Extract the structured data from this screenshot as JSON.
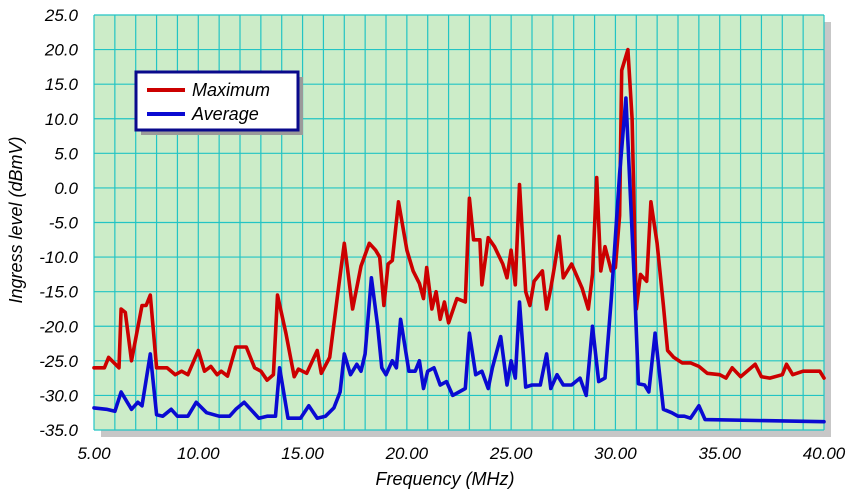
{
  "chart_data": {
    "type": "line",
    "title": "",
    "xlabel": "Frequency (MHz)",
    "ylabel": "Ingress level (dBmV)",
    "xlim": [
      5.0,
      40.0
    ],
    "ylim": [
      -35.0,
      25.0
    ],
    "x_ticks": [
      "5.00",
      "10.00",
      "15.00",
      "20.00",
      "25.00",
      "30.00",
      "35.00",
      "40.00"
    ],
    "y_ticks": [
      "25.0",
      "20.0",
      "15.0",
      "10.0",
      "5.0",
      "0.0",
      "-5.0",
      "-10.0",
      "-15.0",
      "-20.0",
      "-25.0",
      "-30.0",
      "-35.0"
    ],
    "grid": true,
    "legend_position": "top-left",
    "colors": {
      "plot_background": "#ccecc8",
      "grid": "#22c4c4",
      "shadow": "#c7c7c7",
      "legend_border": "#0a0a8c"
    },
    "series": [
      {
        "name": "Maximum",
        "color": "#cc0000",
        "points": [
          [
            5.0,
            -26
          ],
          [
            5.5,
            -26
          ],
          [
            5.7,
            -24.5
          ],
          [
            6.2,
            -26
          ],
          [
            6.3,
            -17.5
          ],
          [
            6.5,
            -18
          ],
          [
            6.8,
            -25
          ],
          [
            7.3,
            -17
          ],
          [
            7.5,
            -17
          ],
          [
            7.7,
            -15.5
          ],
          [
            8.0,
            -26
          ],
          [
            8.5,
            -26
          ],
          [
            8.9,
            -27
          ],
          [
            9.2,
            -26.5
          ],
          [
            9.5,
            -27
          ],
          [
            10.0,
            -23.5
          ],
          [
            10.3,
            -26.5
          ],
          [
            10.6,
            -25.8
          ],
          [
            10.9,
            -27
          ],
          [
            11.1,
            -26.5
          ],
          [
            11.4,
            -27.2
          ],
          [
            11.8,
            -23
          ],
          [
            12.3,
            -23
          ],
          [
            12.7,
            -26
          ],
          [
            13.0,
            -26.5
          ],
          [
            13.3,
            -27.8
          ],
          [
            13.6,
            -27
          ],
          [
            13.8,
            -15.5
          ],
          [
            14.2,
            -21
          ],
          [
            14.6,
            -27.3
          ],
          [
            14.8,
            -26.2
          ],
          [
            15.2,
            -26.8
          ],
          [
            15.7,
            -23.5
          ],
          [
            15.9,
            -26.8
          ],
          [
            16.3,
            -24.5
          ],
          [
            16.7,
            -15
          ],
          [
            17.0,
            -8
          ],
          [
            17.4,
            -17.5
          ],
          [
            17.8,
            -11.3
          ],
          [
            18.2,
            -8
          ],
          [
            18.5,
            -9
          ],
          [
            18.7,
            -10
          ],
          [
            18.9,
            -17
          ],
          [
            19.1,
            -11
          ],
          [
            19.3,
            -10.5
          ],
          [
            19.6,
            -2
          ],
          [
            20.0,
            -9
          ],
          [
            20.3,
            -12
          ],
          [
            20.6,
            -13.8
          ],
          [
            20.8,
            -16
          ],
          [
            20.95,
            -11.5
          ],
          [
            21.2,
            -17.5
          ],
          [
            21.4,
            -15
          ],
          [
            21.6,
            -19
          ],
          [
            21.8,
            -16.5
          ],
          [
            22.0,
            -19.5
          ],
          [
            22.4,
            -16
          ],
          [
            22.8,
            -16.5
          ],
          [
            23.0,
            -1.5
          ],
          [
            23.2,
            -7.5
          ],
          [
            23.5,
            -7.5
          ],
          [
            23.6,
            -14
          ],
          [
            23.9,
            -7.2
          ],
          [
            24.2,
            -8.5
          ],
          [
            24.6,
            -11
          ],
          [
            24.8,
            -13
          ],
          [
            25.0,
            -9
          ],
          [
            25.2,
            -14
          ],
          [
            25.4,
            0.5
          ],
          [
            25.7,
            -15
          ],
          [
            25.9,
            -17
          ],
          [
            26.1,
            -13.5
          ],
          [
            26.5,
            -12
          ],
          [
            26.7,
            -17.5
          ],
          [
            26.9,
            -14.5
          ],
          [
            27.1,
            -11
          ],
          [
            27.3,
            -7
          ],
          [
            27.5,
            -13
          ],
          [
            27.9,
            -11
          ],
          [
            28.4,
            -14.5
          ],
          [
            28.7,
            -17.5
          ],
          [
            28.9,
            -12.5
          ],
          [
            29.1,
            1.5
          ],
          [
            29.3,
            -12
          ],
          [
            29.5,
            -8.5
          ],
          [
            29.8,
            -12
          ],
          [
            30.0,
            -11.5
          ],
          [
            30.2,
            -4
          ],
          [
            30.3,
            17
          ],
          [
            30.6,
            20
          ],
          [
            30.8,
            10
          ],
          [
            31.0,
            -17.5
          ],
          [
            31.2,
            -12.5
          ],
          [
            31.5,
            -13.5
          ],
          [
            31.7,
            -2
          ],
          [
            32.0,
            -8
          ],
          [
            32.3,
            -17
          ],
          [
            32.5,
            -23.5
          ],
          [
            32.8,
            -24.5
          ],
          [
            33.2,
            -25.3
          ],
          [
            33.6,
            -25.3
          ],
          [
            34.0,
            -25.8
          ],
          [
            34.4,
            -26.8
          ],
          [
            35.0,
            -27
          ],
          [
            35.3,
            -27.5
          ],
          [
            35.6,
            -26
          ],
          [
            36.0,
            -27.3
          ],
          [
            36.7,
            -25.5
          ],
          [
            37.0,
            -27.3
          ],
          [
            37.4,
            -27.5
          ],
          [
            38.0,
            -27
          ],
          [
            38.2,
            -25.5
          ],
          [
            38.5,
            -27
          ],
          [
            39.0,
            -26.5
          ],
          [
            39.5,
            -26.5
          ],
          [
            39.8,
            -26.5
          ],
          [
            40.0,
            -27.5
          ]
        ]
      },
      {
        "name": "Average",
        "color": "#0a0ad2",
        "points": [
          [
            5.0,
            -31.8
          ],
          [
            5.6,
            -32
          ],
          [
            6.0,
            -32.3
          ],
          [
            6.3,
            -29.5
          ],
          [
            6.8,
            -32
          ],
          [
            7.1,
            -31
          ],
          [
            7.3,
            -31.5
          ],
          [
            7.7,
            -24
          ],
          [
            8.0,
            -32.8
          ],
          [
            8.3,
            -33
          ],
          [
            8.7,
            -32
          ],
          [
            9.0,
            -33
          ],
          [
            9.5,
            -33
          ],
          [
            9.9,
            -31
          ],
          [
            10.4,
            -32.5
          ],
          [
            11.0,
            -33
          ],
          [
            11.5,
            -33
          ],
          [
            11.8,
            -32
          ],
          [
            12.2,
            -31
          ],
          [
            12.6,
            -32.3
          ],
          [
            12.9,
            -33.3
          ],
          [
            13.3,
            -33
          ],
          [
            13.7,
            -33
          ],
          [
            13.9,
            -26
          ],
          [
            14.3,
            -33.3
          ],
          [
            14.9,
            -33.3
          ],
          [
            15.3,
            -31.5
          ],
          [
            15.7,
            -33.3
          ],
          [
            16.1,
            -33
          ],
          [
            16.5,
            -31.8
          ],
          [
            16.8,
            -29.5
          ],
          [
            17.0,
            -24
          ],
          [
            17.3,
            -27
          ],
          [
            17.6,
            -25.5
          ],
          [
            17.8,
            -26.5
          ],
          [
            18.0,
            -24
          ],
          [
            18.3,
            -13
          ],
          [
            18.6,
            -20
          ],
          [
            18.8,
            -26
          ],
          [
            19.0,
            -27
          ],
          [
            19.3,
            -25
          ],
          [
            19.5,
            -26
          ],
          [
            19.7,
            -19
          ],
          [
            20.1,
            -26.5
          ],
          [
            20.4,
            -26.5
          ],
          [
            20.6,
            -25
          ],
          [
            20.8,
            -29
          ],
          [
            21.0,
            -26.5
          ],
          [
            21.3,
            -26
          ],
          [
            21.6,
            -28.5
          ],
          [
            21.9,
            -28
          ],
          [
            22.2,
            -30
          ],
          [
            22.5,
            -29.5
          ],
          [
            22.8,
            -29
          ],
          [
            23.0,
            -21
          ],
          [
            23.3,
            -27
          ],
          [
            23.6,
            -26.5
          ],
          [
            23.9,
            -29
          ],
          [
            24.1,
            -26
          ],
          [
            24.5,
            -21.5
          ],
          [
            24.8,
            -28.5
          ],
          [
            25.0,
            -25
          ],
          [
            25.2,
            -27.5
          ],
          [
            25.4,
            -16.5
          ],
          [
            25.7,
            -28.8
          ],
          [
            26.0,
            -28.5
          ],
          [
            26.4,
            -28.5
          ],
          [
            26.7,
            -24
          ],
          [
            26.9,
            -29
          ],
          [
            27.2,
            -27
          ],
          [
            27.5,
            -28.5
          ],
          [
            27.9,
            -28.5
          ],
          [
            28.3,
            -27.5
          ],
          [
            28.6,
            -30
          ],
          [
            28.9,
            -20
          ],
          [
            29.2,
            -28
          ],
          [
            29.5,
            -27.5
          ],
          [
            29.8,
            -16
          ],
          [
            30.2,
            2
          ],
          [
            30.5,
            13
          ],
          [
            30.9,
            -13
          ],
          [
            31.1,
            -28.3
          ],
          [
            31.4,
            -28.5
          ],
          [
            31.6,
            -29.5
          ],
          [
            31.9,
            -21
          ],
          [
            32.3,
            -32
          ],
          [
            32.7,
            -32.5
          ],
          [
            33.0,
            -33
          ],
          [
            33.3,
            -33
          ],
          [
            33.6,
            -33.3
          ],
          [
            34.0,
            -31.5
          ],
          [
            34.3,
            -33.5
          ],
          [
            40.0,
            -33.8
          ]
        ]
      }
    ]
  }
}
